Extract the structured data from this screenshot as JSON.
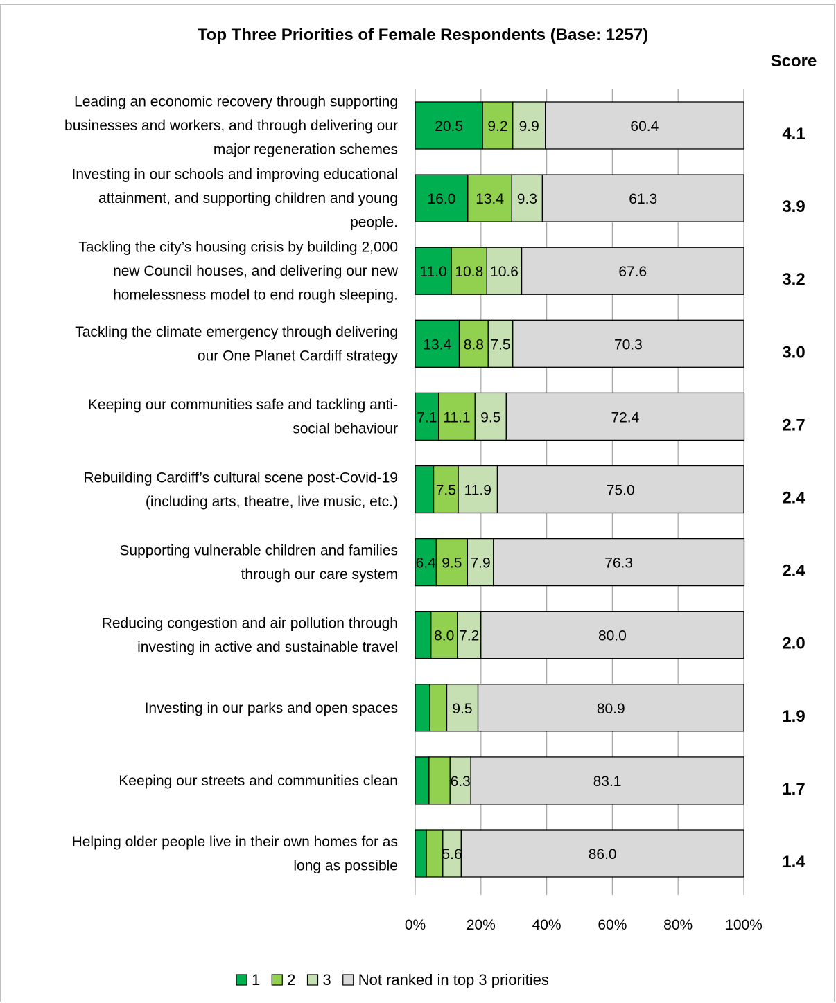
{
  "chart_data": {
    "type": "bar",
    "orientation": "horizontal",
    "stacked": true,
    "title": "Top Three Priorities of Female Respondents (Base: 1257)",
    "score_header": "Score",
    "xlim": [
      0,
      100
    ],
    "x_ticks": [
      "0%",
      "20%",
      "40%",
      "60%",
      "80%",
      "100%"
    ],
    "grid": true,
    "legend_position": "bottom",
    "categories": [
      [
        "Leading an economic recovery through supporting",
        "businesses and workers, and through delivering our",
        "major regeneration schemes"
      ],
      [
        "Investing in our schools and improving educational",
        "attainment, and supporting children and young",
        "people."
      ],
      [
        "Tackling the city’s housing crisis by building 2,000",
        "new Council houses, and delivering our new",
        "homelessness model to end rough sleeping."
      ],
      [
        "Tackling the climate emergency through delivering",
        "our One Planet Cardiff strategy"
      ],
      [
        "Keeping our communities safe and tackling anti-",
        "social behaviour"
      ],
      [
        "Rebuilding Cardiff’s cultural scene post-Covid-19",
        "(including arts, theatre, live music, etc.)"
      ],
      [
        "Supporting vulnerable children and families",
        "through our care system"
      ],
      [
        "Reducing congestion and air pollution through",
        "investing in active and sustainable travel"
      ],
      [
        "Investing in our parks and open spaces"
      ],
      [
        "Keeping our streets and communities clean"
      ],
      [
        "Helping older people live in their own homes for as",
        "long as possible"
      ]
    ],
    "series": [
      {
        "name": "1",
        "color": "#00b050",
        "values": [
          20.5,
          16.0,
          11.0,
          13.4,
          7.1,
          5.6,
          6.4,
          4.8,
          4.4,
          4.2,
          3.4
        ],
        "labels": [
          "20.5",
          "16.0",
          "11.0",
          "13.4",
          "7.1",
          "",
          "6.4",
          "",
          "",
          "",
          ""
        ]
      },
      {
        "name": "2",
        "color": "#92d050",
        "values": [
          9.2,
          13.4,
          10.8,
          8.8,
          11.1,
          7.5,
          9.5,
          8.0,
          5.2,
          6.4,
          5.0
        ],
        "labels": [
          "9.2",
          "13.4",
          "10.8",
          "8.8",
          "11.1",
          "7.5",
          "9.5",
          "8.0",
          "",
          "",
          ""
        ]
      },
      {
        "name": "3",
        "color": "#c6e0b4",
        "values": [
          9.9,
          9.3,
          10.6,
          7.5,
          9.5,
          11.9,
          7.9,
          7.2,
          9.5,
          6.3,
          5.6
        ],
        "labels": [
          "9.9",
          "9.3",
          "10.6",
          "7.5",
          "9.5",
          "11.9",
          "7.9",
          "7.2",
          "9.5",
          "6.3",
          "5.6"
        ]
      },
      {
        "name": "Not ranked in top 3 priorities",
        "color": "#d9d9d9",
        "values": [
          60.4,
          61.3,
          67.6,
          70.3,
          72.4,
          75.0,
          76.3,
          80.0,
          80.9,
          83.1,
          86.0
        ],
        "labels": [
          "60.4",
          "61.3",
          "67.6",
          "70.3",
          "72.4",
          "75.0",
          "76.3",
          "80.0",
          "80.9",
          "83.1",
          "86.0"
        ]
      }
    ],
    "scores": [
      "4.1",
      "3.9",
      "3.2",
      "3.0",
      "2.7",
      "2.4",
      "2.4",
      "2.0",
      "1.9",
      "1.7",
      "1.4"
    ]
  }
}
